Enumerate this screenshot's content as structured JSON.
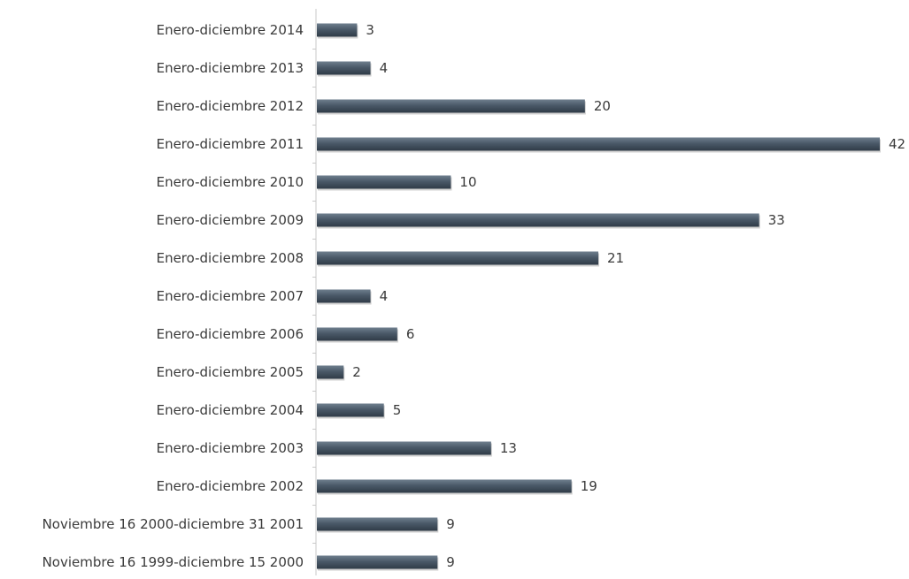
{
  "chart_data": {
    "type": "bar",
    "orientation": "horizontal",
    "title": "",
    "xlabel": "",
    "ylabel": "",
    "categories": [
      "Enero-diciembre 2014",
      "Enero-diciembre 2013",
      "Enero-diciembre 2012",
      "Enero-diciembre 2011",
      "Enero-diciembre 2010",
      "Enero-diciembre 2009",
      "Enero-diciembre 2008",
      "Enero-diciembre 2007",
      "Enero-diciembre 2006",
      "Enero-diciembre 2005",
      "Enero-diciembre 2004",
      "Enero-diciembre 2003",
      "Enero-diciembre 2002",
      "Noviembre 16 2000-diciembre 31 2001",
      "Noviembre 16 1999-diciembre 15 2000"
    ],
    "values": [
      3,
      4,
      20,
      42,
      10,
      33,
      21,
      4,
      6,
      2,
      5,
      13,
      19,
      9,
      9
    ],
    "xlim": [
      0,
      42
    ],
    "grid": false,
    "legend": "none",
    "bar_color": "#4a5968",
    "label_color": "#3a3a3a",
    "axis_color": "#c8c8c8"
  }
}
